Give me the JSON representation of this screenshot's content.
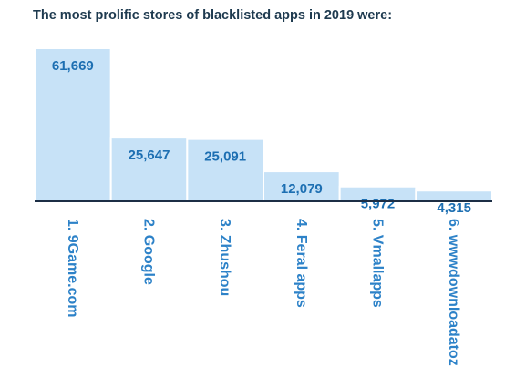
{
  "title": "The most prolific stores of blacklisted apps in 2019 were:",
  "colors": {
    "title": "#1e3a4f",
    "bar_fill": "#c7e2f7",
    "bar_stroke": "#ffffff",
    "value_text": "#1d6fb2",
    "category_text": "#2d82c8",
    "baseline": "#1c2e45"
  },
  "chart_data": {
    "type": "bar",
    "title": "The most prolific stores of blacklisted apps in 2019 were:",
    "categories": [
      "1. 9Game.com",
      "2. Google",
      "3. Zhushou",
      "4. Feral apps",
      "5. Vmallapps",
      "6. wwwdownloadatoz"
    ],
    "values": [
      61669,
      25647,
      25091,
      12079,
      5972,
      4315
    ],
    "value_labels": [
      "61,669",
      "25,647",
      "25,091",
      "12,079",
      "5,972",
      "4,315"
    ],
    "xlabel": "",
    "ylabel": "",
    "ylim": [
      0,
      61669
    ],
    "grid": false,
    "legend": "none"
  }
}
